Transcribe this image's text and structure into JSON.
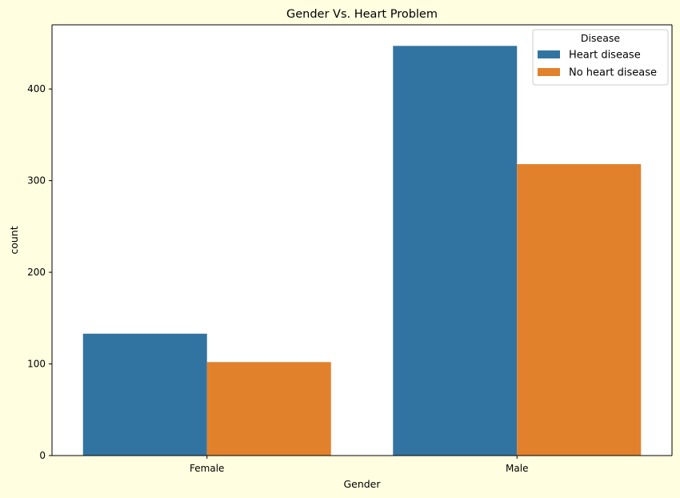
{
  "chart_data": {
    "type": "bar",
    "title": "Gender Vs. Heart Problem",
    "xlabel": "Gender",
    "ylabel": "count",
    "categories": [
      "Female",
      "Male"
    ],
    "series": [
      {
        "name": "Heart disease",
        "values": [
          133,
          447
        ],
        "color": "#3274a1"
      },
      {
        "name": "No heart disease",
        "values": [
          102,
          318
        ],
        "color": "#e1812c"
      }
    ],
    "ylim": [
      0,
      470
    ],
    "yticks": [
      0,
      100,
      200,
      300,
      400
    ],
    "grid": false,
    "legend": {
      "title": "Disease",
      "placement": "top-right"
    }
  },
  "background_color": "#fffee0"
}
